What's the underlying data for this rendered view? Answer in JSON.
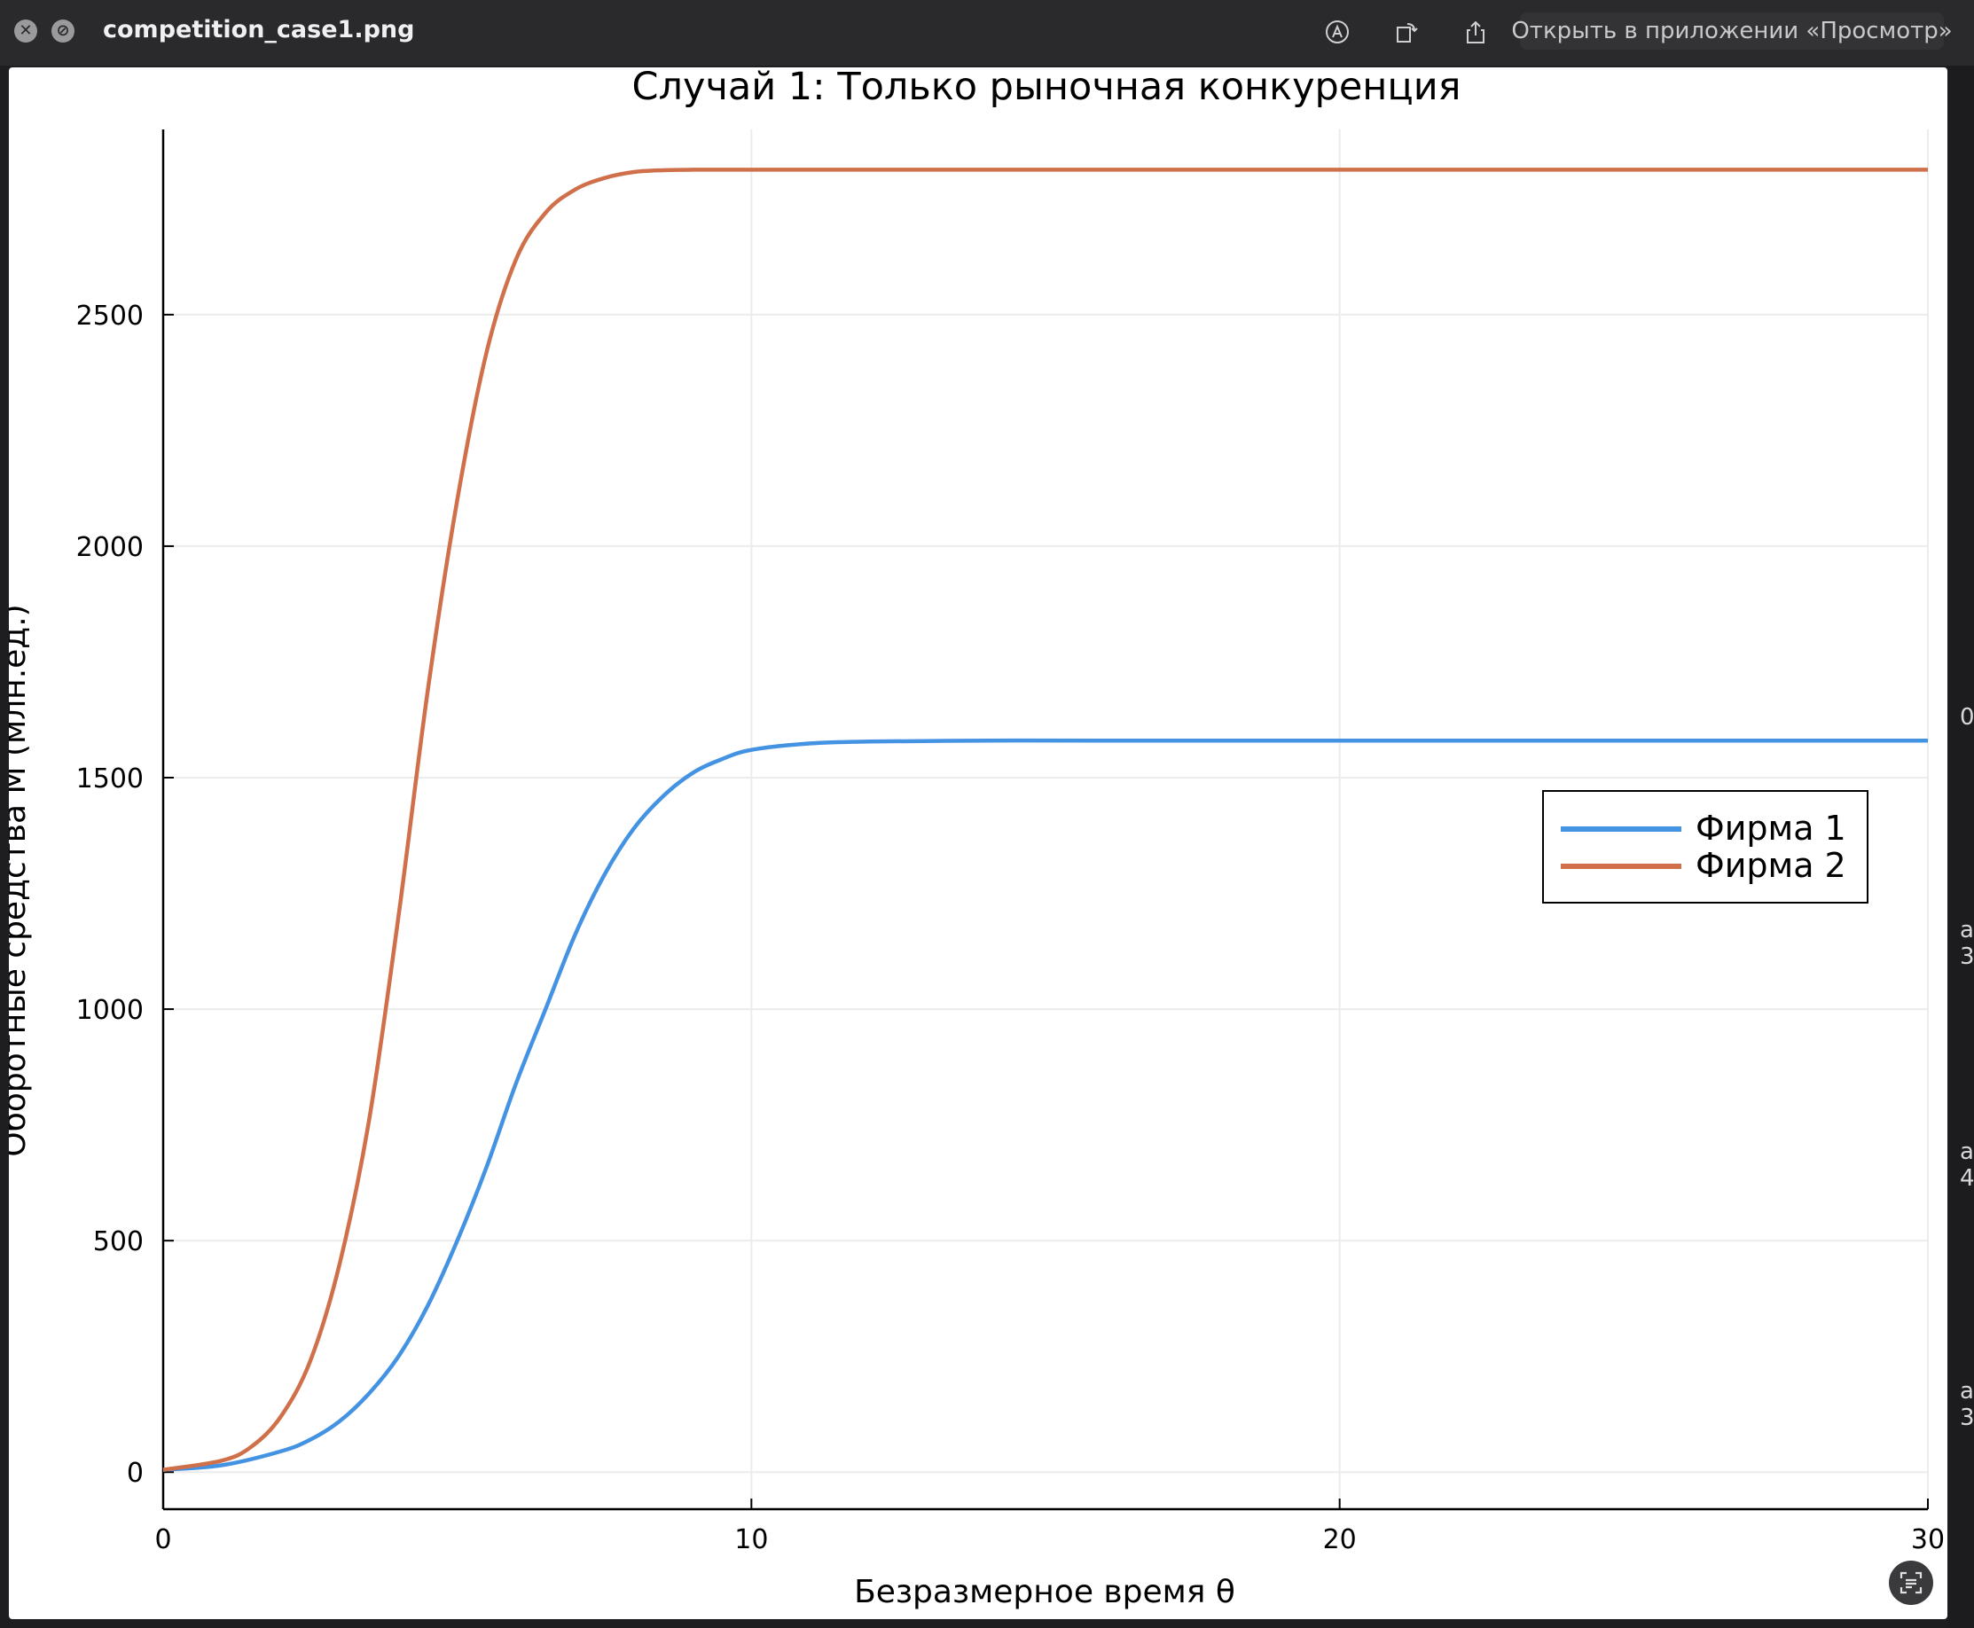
{
  "window": {
    "filename": "competition_case1.png",
    "open_in_app_label": "Открыть в приложении «Просмотр»"
  },
  "toolbar_icons": [
    "close-icon",
    "stop-icon",
    "markup-icon",
    "rotate-icon",
    "share-icon",
    "live-text-icon"
  ],
  "colors": {
    "firm1": "#4493e3",
    "firm2": "#d0704a",
    "axis": "#000000",
    "grid": "#ececec"
  },
  "chart_data": {
    "type": "line",
    "title": "Случай 1: Только рыночная конкуренция",
    "xlabel": "Безразмерное время θ",
    "ylabel": "Оборотные средства M (млн.ед.)",
    "xlim": [
      0,
      30
    ],
    "ylim": [
      -80,
      2900
    ],
    "xticks": [
      0,
      10,
      20,
      30
    ],
    "yticks": [
      0,
      500,
      1000,
      1500,
      2000,
      2500
    ],
    "grid": true,
    "legend_position": "right",
    "series": [
      {
        "name": "Фирма 1",
        "color": "#4493e3",
        "x": [
          0,
          1,
          2,
          2.5,
          3,
          3.5,
          4,
          4.5,
          5,
          5.5,
          6,
          6.5,
          7,
          7.5,
          8,
          8.5,
          9,
          9.5,
          10,
          11,
          12,
          14,
          16,
          20,
          25,
          30
        ],
        "y": [
          5,
          15,
          45,
          70,
          110,
          170,
          250,
          360,
          500,
          660,
          840,
          1000,
          1160,
          1290,
          1390,
          1460,
          1510,
          1540,
          1560,
          1574,
          1578,
          1580,
          1580,
          1580,
          1580,
          1580
        ]
      },
      {
        "name": "Фирма 2",
        "color": "#d0704a",
        "x": [
          0,
          1,
          1.5,
          2,
          2.5,
          3,
          3.5,
          4,
          4.5,
          5,
          5.5,
          6,
          6.5,
          7,
          7.5,
          8,
          8.5,
          9,
          10,
          11,
          12,
          14,
          16,
          20,
          25,
          30
        ],
        "y": [
          5,
          25,
          55,
          120,
          240,
          450,
          760,
          1200,
          1690,
          2100,
          2420,
          2620,
          2720,
          2770,
          2795,
          2808,
          2812,
          2813,
          2813,
          2813,
          2813,
          2813,
          2813,
          2813,
          2813,
          2813
        ]
      }
    ]
  }
}
